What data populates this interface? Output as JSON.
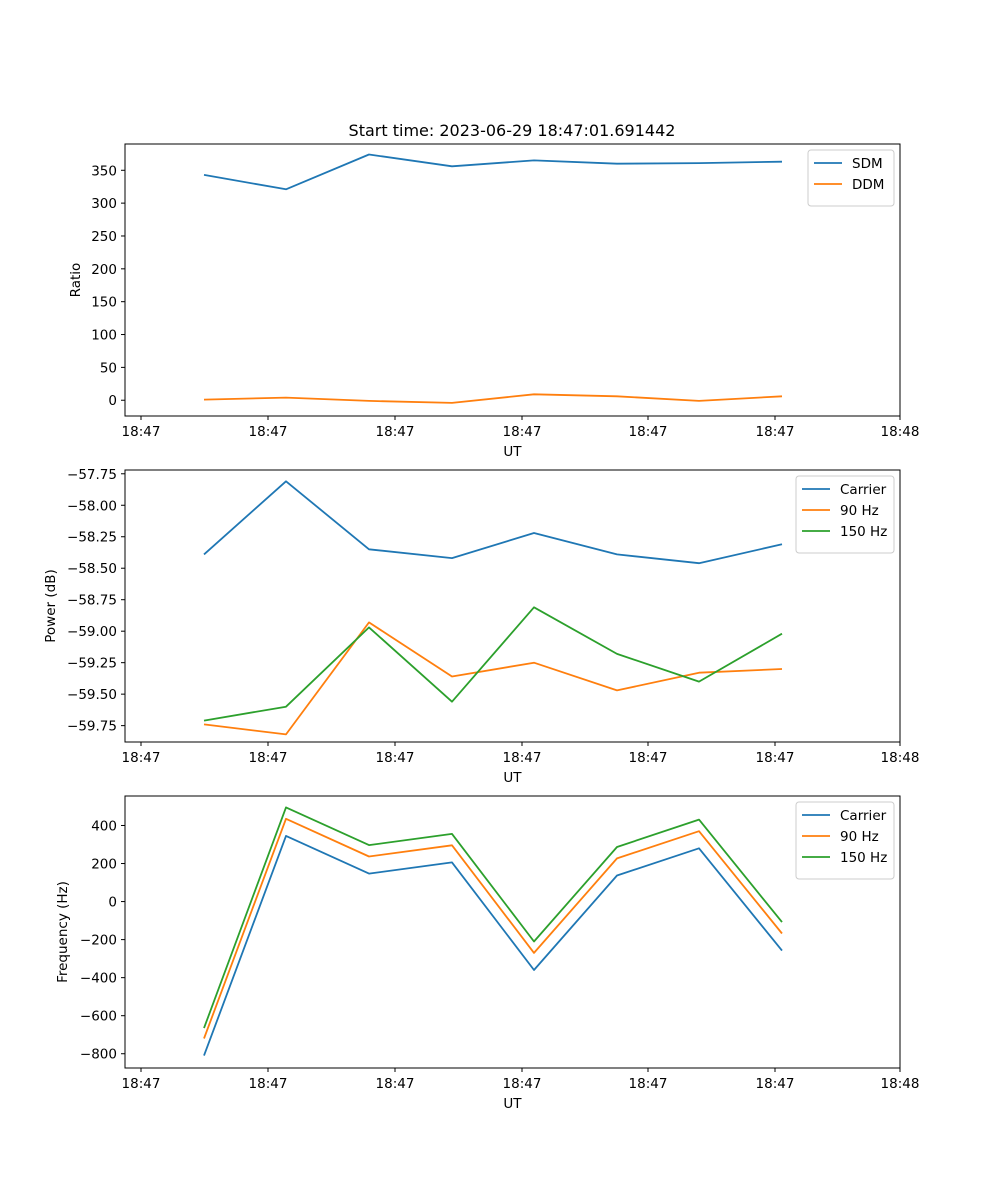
{
  "figure_title": "Start time: 2023-06-29 18:47:01.691442",
  "chart_data": [
    {
      "type": "line",
      "title": "Start time: 2023-06-29 18:47:01.691442",
      "xlabel": "UT",
      "ylabel": "Ratio",
      "x_tick_labels": [
        "18:47",
        "18:47",
        "18:47",
        "18:47",
        "18:47",
        "18:47",
        "18:47"
      ],
      "y_ticks": [
        0,
        50,
        100,
        150,
        200,
        250,
        300,
        350
      ],
      "ylim": [
        -24,
        390
      ],
      "legend_position": "upper-right",
      "series": [
        {
          "name": "SDM",
          "color": "#1f77b4",
          "values": [
            343,
            321,
            374,
            356,
            365,
            360,
            361,
            363
          ]
        },
        {
          "name": "DDM",
          "color": "#ff7f0e",
          "values": [
            1,
            4,
            -1,
            -4,
            9,
            6,
            -1,
            6
          ]
        }
      ]
    },
    {
      "type": "line",
      "title": "",
      "xlabel": "UT",
      "ylabel": "Power (dB)",
      "x_tick_labels": [
        "18:47",
        "18:47",
        "18:47",
        "18:47",
        "18:47",
        "18:47",
        "18:47"
      ],
      "y_ticks": [
        -59.75,
        -59.5,
        -59.25,
        -59.0,
        -58.75,
        -58.5,
        -58.25,
        -58.0,
        -57.75
      ],
      "y_tick_labels": [
        "−59.75",
        "−59.50",
        "−59.25",
        "−59.00",
        "−58.75",
        "−58.50",
        "−58.25",
        "−58.00",
        "−57.75"
      ],
      "ylim": [
        -59.88,
        -57.72
      ],
      "legend_position": "upper-right",
      "series": [
        {
          "name": "Carrier",
          "color": "#1f77b4",
          "values": [
            -58.39,
            -57.81,
            -58.35,
            -58.42,
            -58.22,
            -58.39,
            -58.46,
            -58.31
          ]
        },
        {
          "name": "90 Hz",
          "color": "#ff7f0e",
          "values": [
            -59.74,
            -59.82,
            -58.93,
            -59.36,
            -59.25,
            -59.47,
            -59.33,
            -59.3
          ]
        },
        {
          "name": "150 Hz",
          "color": "#2ca02c",
          "values": [
            -59.71,
            -59.6,
            -58.97,
            -59.56,
            -58.81,
            -59.18,
            -59.4,
            -59.02
          ]
        }
      ]
    },
    {
      "type": "line",
      "title": "",
      "xlabel": "UT",
      "ylabel": "Frequency (Hz)",
      "x_tick_labels": [
        "18:47",
        "18:47",
        "18:47",
        "18:47",
        "18:47",
        "18:47",
        "18:47"
      ],
      "y_ticks": [
        -800,
        -600,
        -400,
        -200,
        0,
        200,
        400
      ],
      "y_tick_labels": [
        "−800",
        "−600",
        "−400",
        "−200",
        "0",
        "200",
        "400"
      ],
      "ylim": [
        -875,
        555
      ],
      "legend_position": "upper-right",
      "series": [
        {
          "name": "Carrier",
          "color": "#1f77b4",
          "values": [
            -810,
            345,
            147,
            206,
            -360,
            137,
            280,
            -258
          ]
        },
        {
          "name": "90 Hz",
          "color": "#ff7f0e",
          "values": [
            -720,
            435,
            237,
            296,
            -270,
            227,
            370,
            -168
          ]
        },
        {
          "name": "150 Hz",
          "color": "#2ca02c",
          "values": [
            -665,
            495,
            297,
            356,
            -210,
            287,
            431,
            -108
          ]
        }
      ]
    }
  ],
  "x_edge_labels": {
    "left": "18:47",
    "right": "18:48"
  },
  "y_tick_labels_top": [
    "0",
    "50",
    "100",
    "150",
    "200",
    "250",
    "300",
    "350"
  ]
}
